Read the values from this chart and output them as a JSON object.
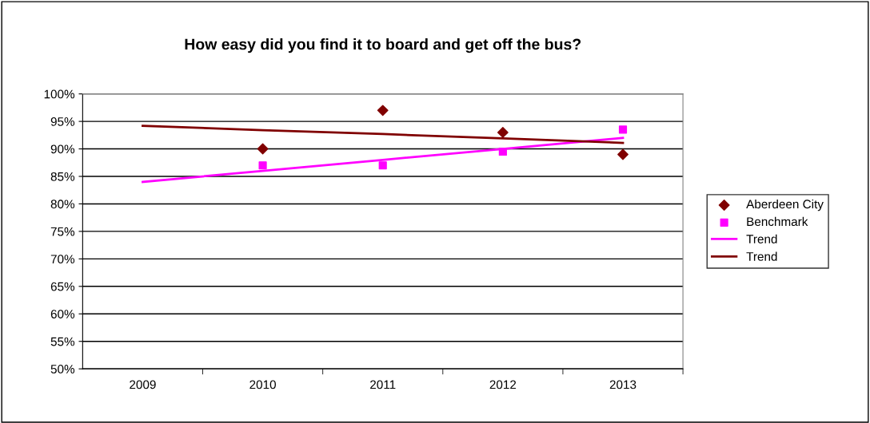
{
  "chart_data": {
    "type": "scatter",
    "title": "How easy did you find it to board and get off the bus?",
    "categories": [
      "2009",
      "2010",
      "2011",
      "2012",
      "2013"
    ],
    "series": [
      {
        "name": "Aberdeen City",
        "color": "#800000",
        "marker": "diamond",
        "values": [
          null,
          90,
          97,
          93,
          89
        ]
      },
      {
        "name": "Benchmark",
        "color": "#ff00ff",
        "marker": "square",
        "values": [
          null,
          87,
          87,
          89.5,
          93.5
        ]
      },
      {
        "name": "Trend",
        "type": "line",
        "color": "#ff00ff",
        "marker": "none",
        "values": [
          84,
          86,
          88,
          90,
          92
        ]
      },
      {
        "name": "Trend",
        "type": "line",
        "color": "#800000",
        "marker": "none",
        "values": [
          94.2,
          93.4,
          92.7,
          91.9,
          91.1
        ]
      }
    ],
    "ylim": [
      50,
      100
    ],
    "yticks": [
      {
        "value": 50,
        "label": "50%"
      },
      {
        "value": 55,
        "label": "55%"
      },
      {
        "value": 60,
        "label": "60%"
      },
      {
        "value": 65,
        "label": "65%"
      },
      {
        "value": 70,
        "label": "70%"
      },
      {
        "value": 75,
        "label": "75%"
      },
      {
        "value": 80,
        "label": "80%"
      },
      {
        "value": 85,
        "label": "85%"
      },
      {
        "value": 90,
        "label": "90%"
      },
      {
        "value": 95,
        "label": "95%"
      },
      {
        "value": 100,
        "label": "100%"
      }
    ],
    "grid": "y",
    "legend": "right"
  }
}
